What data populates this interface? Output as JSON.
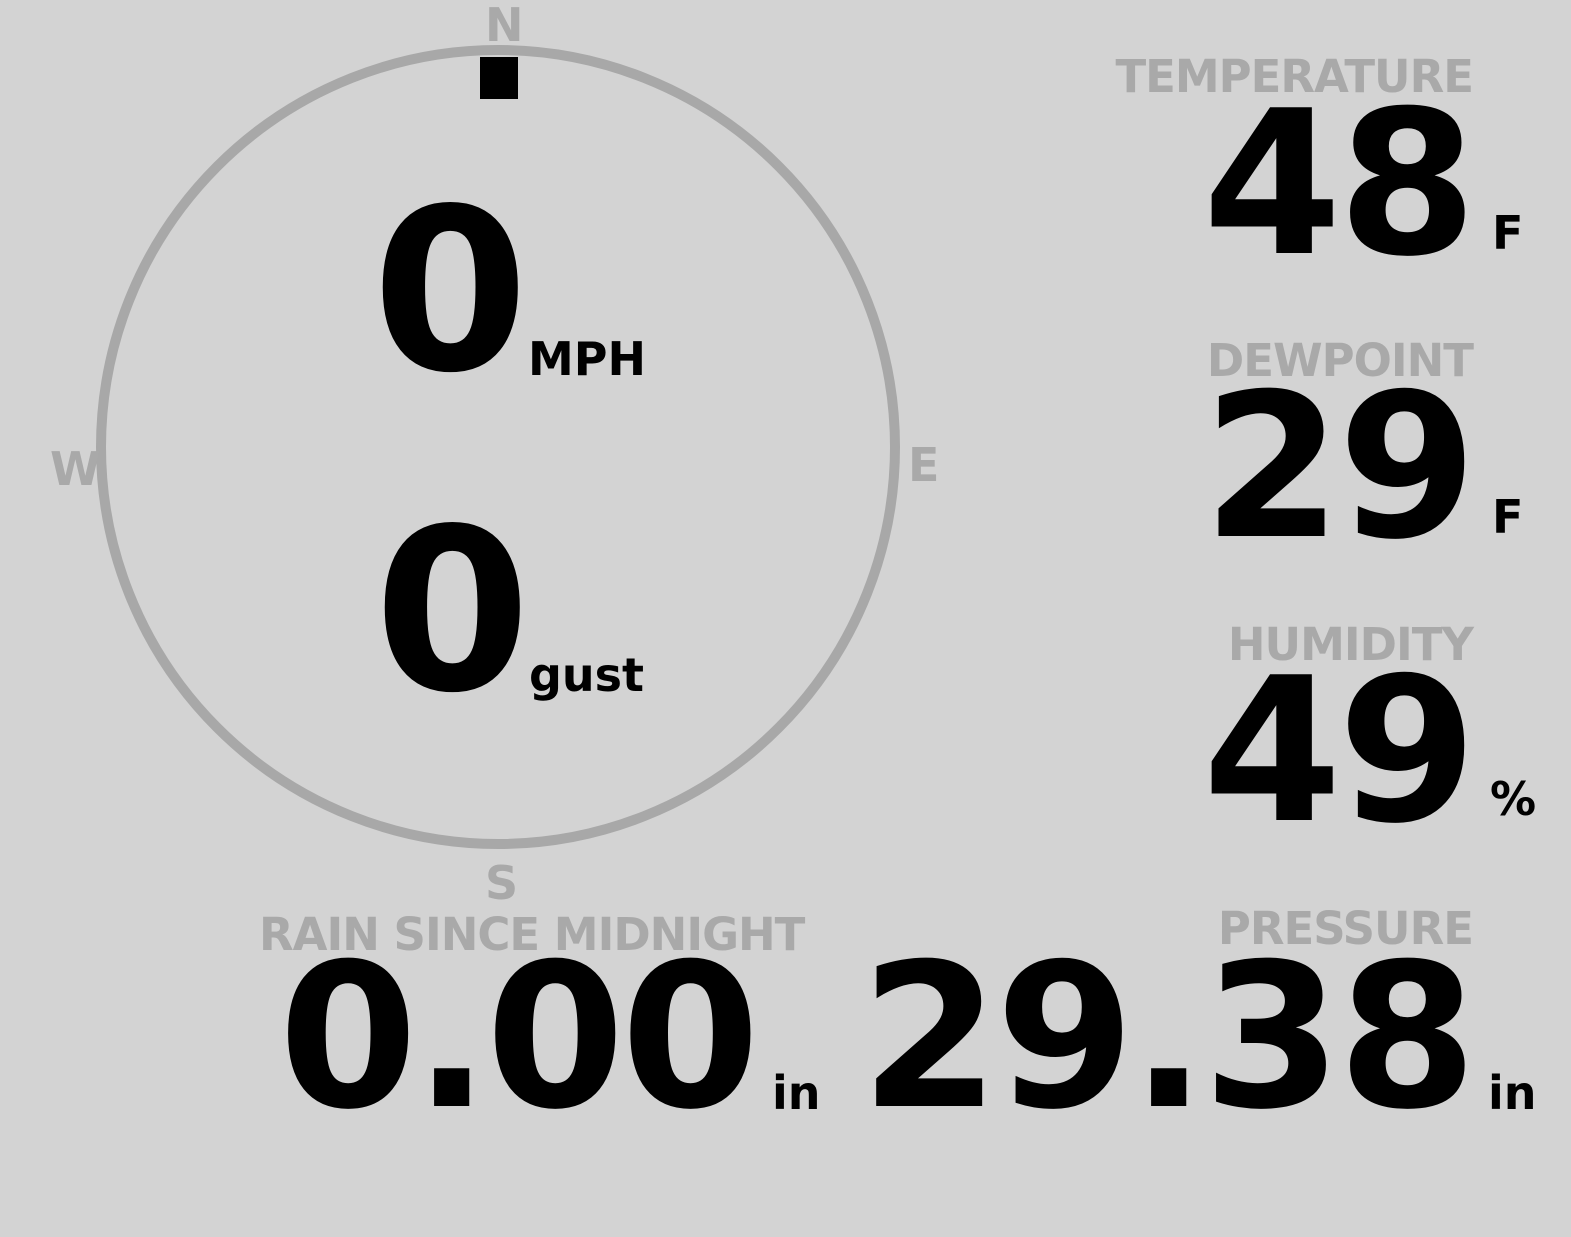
{
  "wind": {
    "speed": "0",
    "speed_unit": "MPH",
    "gust": "0",
    "gust_unit": "gust",
    "direction_degrees": 0,
    "compass": {
      "n": "N",
      "e": "E",
      "s": "S",
      "w": "W"
    }
  },
  "temperature": {
    "label": "TEMPERATURE",
    "value": "48",
    "unit": "F"
  },
  "dewpoint": {
    "label": "DEWPOINT",
    "value": "29",
    "unit": "F"
  },
  "humidity": {
    "label": "HUMIDITY",
    "value": "49",
    "unit": "%"
  },
  "pressure": {
    "label": "PRESSURE",
    "value": "29.38",
    "unit": "in"
  },
  "rain": {
    "label": "RAIN SINCE MIDNIGHT",
    "value": "0.00",
    "unit": "in"
  },
  "colors": {
    "background": "#d3d3d3",
    "ring": "#a8a8a8",
    "label": "#a9a9a9",
    "value": "#000000"
  }
}
